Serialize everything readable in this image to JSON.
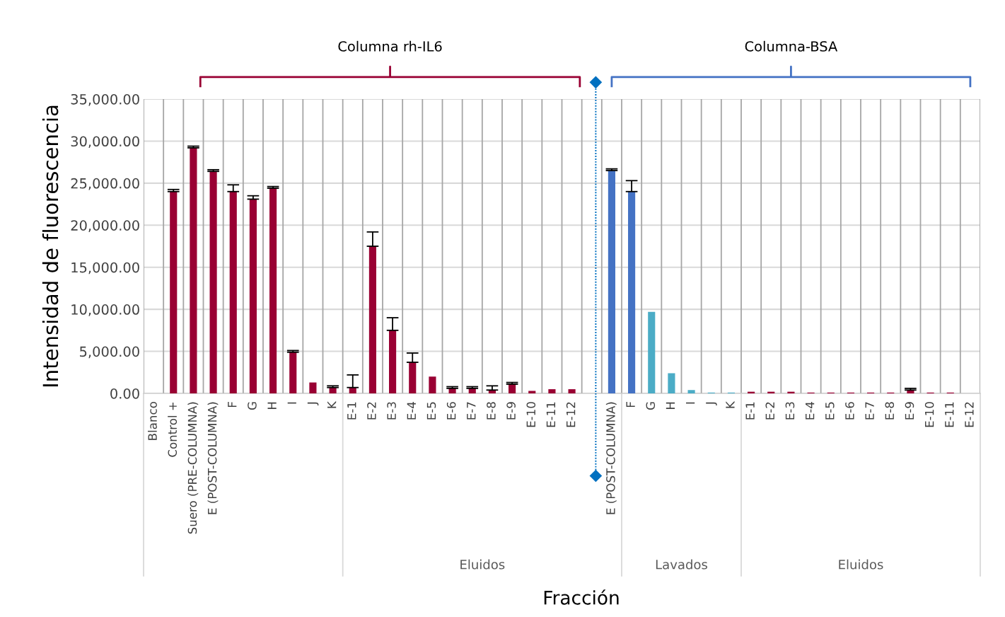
{
  "chart_data": {
    "type": "bar",
    "xlabel": "Fracción",
    "ylabel": "Intensidad de fluorescencia",
    "categories": [
      "Blanco",
      "Control +",
      "Suero (PRE-COLUMNA)",
      "E (POST-COLUMNA)",
      "F",
      "G",
      "H",
      "I",
      "J",
      "K",
      "E-1",
      "E-2",
      "E-3",
      "E-4",
      "E-5",
      "E-6",
      "E-7",
      "E-8",
      "E-9",
      "E-10",
      "E-11",
      "E-12",
      null,
      "E (POST-COLUMNA)",
      "F",
      "G",
      "H",
      "I",
      "J",
      "K",
      "E-1",
      "E-2",
      "E-3",
      "E-4",
      "E-5",
      "E-6",
      "E-7",
      "E-8",
      "E-9",
      "E-10",
      "E-11",
      "E-12"
    ],
    "values": [
      0,
      24000,
      29200,
      26400,
      24000,
      23100,
      24400,
      4900,
      1300,
      700,
      700,
      17500,
      7500,
      3700,
      2000,
      600,
      600,
      400,
      1100,
      300,
      500,
      500,
      null,
      26500,
      24000,
      9700,
      2400,
      400,
      100,
      100,
      200,
      200,
      200,
      100,
      100,
      100,
      100,
      100,
      400,
      100,
      100,
      0
    ],
    "errors": [
      null,
      250,
      200,
      200,
      800,
      400,
      200,
      200,
      null,
      200,
      1500,
      1700,
      1500,
      1100,
      null,
      200,
      200,
      500,
      200,
      null,
      null,
      null,
      null,
      200,
      1300,
      null,
      null,
      null,
      null,
      null,
      null,
      null,
      null,
      null,
      null,
      null,
      null,
      null,
      200,
      null,
      null,
      null
    ],
    "colors": [
      "#990033",
      "#990033",
      "#990033",
      "#990033",
      "#990033",
      "#990033",
      "#990033",
      "#990033",
      "#990033",
      "#990033",
      "#990033",
      "#990033",
      "#990033",
      "#990033",
      "#990033",
      "#990033",
      "#990033",
      "#990033",
      "#990033",
      "#990033",
      "#990033",
      "#990033",
      "#990033",
      "#4472c4",
      "#4472c4",
      "#4bacc6",
      "#4bacc6",
      "#4bacc6",
      "#4bacc6",
      "#4bacc6",
      "#990033",
      "#990033",
      "#990033",
      "#990033",
      "#990033",
      "#990033",
      "#990033",
      "#990033",
      "#990033",
      "#990033",
      "#990033",
      "#990033"
    ],
    "ylim": [
      0,
      35000
    ],
    "yticks": [
      {
        "value": 0,
        "label": "0.00"
      },
      {
        "value": 5000,
        "label": "5,000.00"
      },
      {
        "value": 10000,
        "label": "10,000.00"
      },
      {
        "value": 15000,
        "label": "15,000.00"
      },
      {
        "value": 20000,
        "label": "20,000.00"
      },
      {
        "value": 25000,
        "label": "25,000.00"
      },
      {
        "value": 30000,
        "label": "30,000.00"
      },
      {
        "value": 35000,
        "label": "35,000.00"
      }
    ],
    "grid": true,
    "annotations": [
      "Columna rh-IL6",
      "Columna-BSA",
      "Eluidos",
      "Lavados",
      "Eluidos"
    ]
  }
}
